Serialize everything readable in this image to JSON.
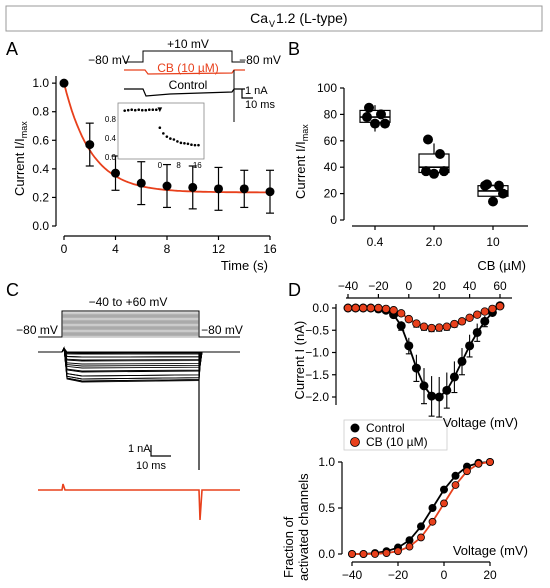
{
  "header": {
    "title_main": "Ca",
    "title_sub": "V",
    "title_rest": "1.2 (L-type)"
  },
  "panels": {
    "a": "A",
    "b": "B",
    "c": "C",
    "d": "D"
  },
  "colors": {
    "control": "#000000",
    "cb": "#e8401c",
    "box_fill": "#ffffff",
    "grid": "#999999"
  },
  "panel_a": {
    "protocol": {
      "hold_left": "−80 mV",
      "step": "+10 mV",
      "hold_right": "−80 mV"
    },
    "trace_labels": {
      "cb": "CB (10 µM)",
      "control": "Control"
    },
    "scale": {
      "current": "1 nA",
      "time": "10 ms"
    }
  },
  "panel_c": {
    "protocol": {
      "hold_left": "−80 mV",
      "step": "−40 to +60 mV",
      "hold_right": "−80 mV"
    },
    "scale": {
      "current": "1 nA",
      "time": "10 ms"
    }
  },
  "legend_d": {
    "control": "Control",
    "cb": "CB (10 µM)"
  },
  "chart_data": [
    {
      "id": "A-main",
      "type": "scatter",
      "ylabel_main": "Current I/I",
      "ylabel_sub": "max",
      "xlabel": "Time (s)",
      "x": [
        0,
        2,
        4,
        6,
        8,
        10,
        12,
        14,
        16
      ],
      "y": [
        1.0,
        0.57,
        0.37,
        0.3,
        0.28,
        0.27,
        0.26,
        0.26,
        0.24
      ],
      "err": [
        0,
        0.15,
        0.12,
        0.15,
        0.15,
        0.15,
        0.15,
        0.13,
        0.15
      ],
      "fit": "exponential decay",
      "fit_color": "#e8401c",
      "xticks": [
        0,
        4,
        8,
        12,
        16
      ],
      "yticks": [
        0.0,
        0.2,
        0.4,
        0.6,
        0.8,
        1.0
      ],
      "xlim": [
        0,
        16
      ],
      "ylim": [
        0,
        1.05
      ]
    },
    {
      "id": "A-inset",
      "type": "scatter",
      "x": [
        -15,
        -13.5,
        -12,
        -10.5,
        -9,
        -7.5,
        -6,
        -4.5,
        -3,
        -1.5,
        0,
        1.5,
        3,
        4.5,
        6,
        7.5,
        9,
        10.5,
        12,
        13.5,
        15,
        16.5
      ],
      "y": [
        0.98,
        0.99,
        1.0,
        0.99,
        1.0,
        0.99,
        0.99,
        1.0,
        1.0,
        1.0,
        0.62,
        0.5,
        0.43,
        0.39,
        0.37,
        0.33,
        0.3,
        0.29,
        0.28,
        0.26,
        0.25,
        0.25
      ],
      "xticks": [
        0,
        8,
        16
      ],
      "yticks": [
        0.0,
        0.4,
        0.8
      ],
      "xlim": [
        -17,
        18
      ],
      "ylim": [
        0,
        1.1
      ],
      "marker": "▼"
    },
    {
      "id": "B",
      "type": "box",
      "ylabel_main": "Current I/I",
      "ylabel_sub": "max",
      "xlabel": "CB (µM)",
      "categories": [
        "0.4",
        "2.0",
        "10"
      ],
      "points": [
        [
          85,
          80,
          78,
          73,
          73
        ],
        [
          61,
          50,
          37,
          37,
          35
        ],
        [
          27,
          26,
          26,
          20,
          14
        ]
      ],
      "boxes": [
        {
          "q1": 74,
          "median": 78,
          "q3": 83,
          "min": 67,
          "max": 87
        },
        {
          "q1": 36,
          "median": 40,
          "q3": 50,
          "min": 34,
          "max": 58
        },
        {
          "q1": 18,
          "median": 22,
          "q3": 26,
          "min": 15,
          "max": 27
        }
      ],
      "yticks": [
        0,
        20,
        40,
        60,
        80,
        100
      ],
      "ylim": [
        0,
        100
      ]
    },
    {
      "id": "D-IV",
      "type": "line",
      "ylabel": "Current I (nA)",
      "xlabel": "Voltage (mV)",
      "x": [
        -40,
        -35,
        -30,
        -25,
        -20,
        -15,
        -10,
        -5,
        0,
        5,
        10,
        15,
        20,
        25,
        30,
        35,
        40,
        45,
        50,
        55,
        60
      ],
      "series": [
        {
          "name": "Control",
          "values": [
            0.0,
            0.0,
            0.0,
            0.0,
            -0.02,
            -0.05,
            -0.15,
            -0.4,
            -0.85,
            -1.35,
            -1.75,
            -1.98,
            -2.0,
            -1.85,
            -1.55,
            -1.2,
            -0.85,
            -0.55,
            -0.3,
            -0.1,
            0.05
          ],
          "err": [
            0,
            0,
            0,
            0,
            0,
            0.02,
            0.05,
            0.1,
            0.18,
            0.3,
            0.4,
            0.45,
            0.45,
            0.4,
            0.35,
            0.3,
            0.25,
            0.2,
            0.12,
            0.06,
            0.03
          ]
        },
        {
          "name": "CB (10 µM)",
          "values": [
            0.0,
            0.0,
            0.0,
            0.0,
            0.0,
            -0.02,
            -0.05,
            -0.12,
            -0.25,
            -0.35,
            -0.42,
            -0.45,
            -0.44,
            -0.42,
            -0.36,
            -0.3,
            -0.22,
            -0.15,
            -0.08,
            -0.02,
            0.04
          ],
          "err": [
            0,
            0,
            0,
            0,
            0,
            0.01,
            0.02,
            0.04,
            0.06,
            0.08,
            0.08,
            0.08,
            0.08,
            0.08,
            0.07,
            0.06,
            0.05,
            0.04,
            0.03,
            0.02,
            0.01
          ]
        }
      ],
      "xticks": [
        -40,
        -20,
        0,
        20,
        40,
        60
      ],
      "yticks": [
        0.0,
        -0.5,
        -1.0,
        -1.5,
        -2.0
      ],
      "xlim": [
        -45,
        62
      ],
      "ylim": [
        -2.2,
        0.1
      ]
    },
    {
      "id": "D-activation",
      "type": "line",
      "ylabel_line1": "Fraction of",
      "ylabel_line2": "activated channels",
      "xlabel": "Voltage (mV)",
      "x": [
        -40,
        -35,
        -30,
        -25,
        -20,
        -15,
        -10,
        -5,
        0,
        5,
        10,
        15,
        20
      ],
      "series": [
        {
          "name": "Control",
          "values": [
            0.0,
            0.0,
            0.01,
            0.03,
            0.07,
            0.15,
            0.3,
            0.5,
            0.7,
            0.85,
            0.95,
            0.99,
            1.0
          ]
        },
        {
          "name": "CB (10 µM)",
          "values": [
            0.0,
            0.0,
            0.0,
            0.01,
            0.03,
            0.08,
            0.18,
            0.35,
            0.55,
            0.75,
            0.9,
            0.98,
            1.0
          ]
        }
      ],
      "xticks": [
        -40,
        -20,
        0,
        20
      ],
      "yticks": [
        0.0,
        0.5,
        1.0
      ],
      "xlim": [
        -42,
        22
      ],
      "ylim": [
        -0.05,
        1.08
      ]
    }
  ]
}
